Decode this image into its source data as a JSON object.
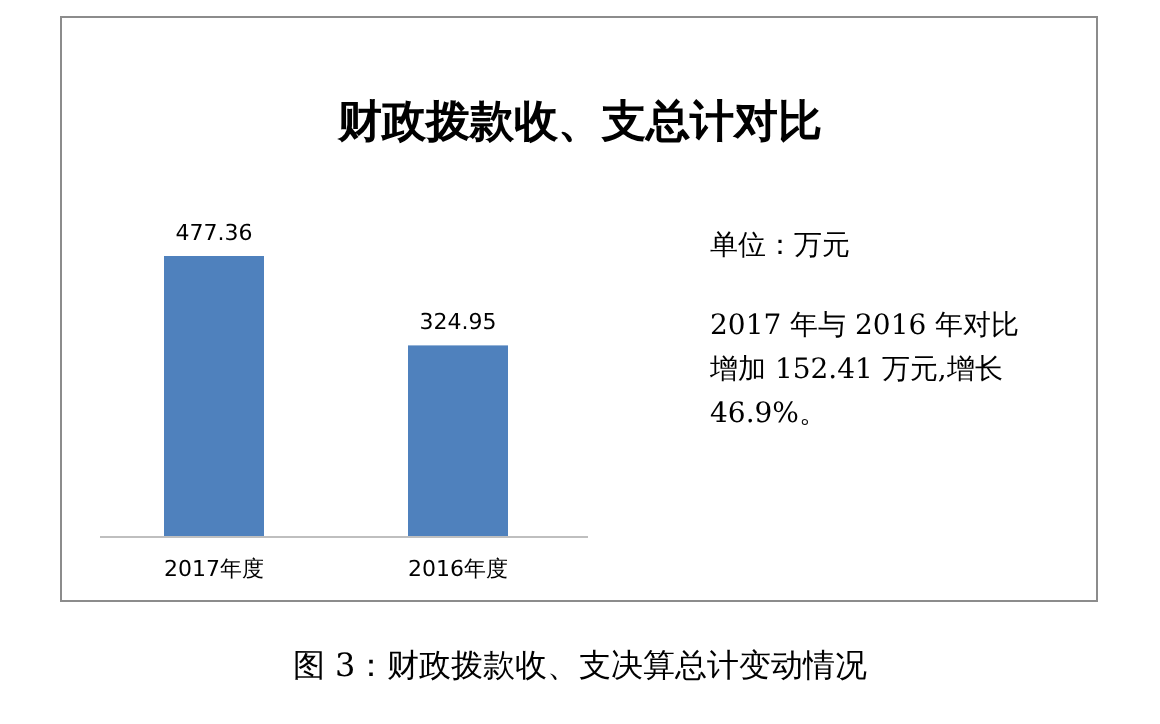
{
  "chart_data": {
    "type": "bar",
    "title": "财政拨款收、支总计对比",
    "categories": [
      "2017年度",
      "2016年度"
    ],
    "values": [
      477.36,
      324.95
    ],
    "color": "#4f81bd",
    "data_labels": true,
    "annotations": [
      "单位：万元",
      "2017 年与 2016 年对比",
      "增加 152.41 万元,增长",
      "46.9%。",
      "图 3：财政拨款收、支决算总计变动情况"
    ]
  }
}
